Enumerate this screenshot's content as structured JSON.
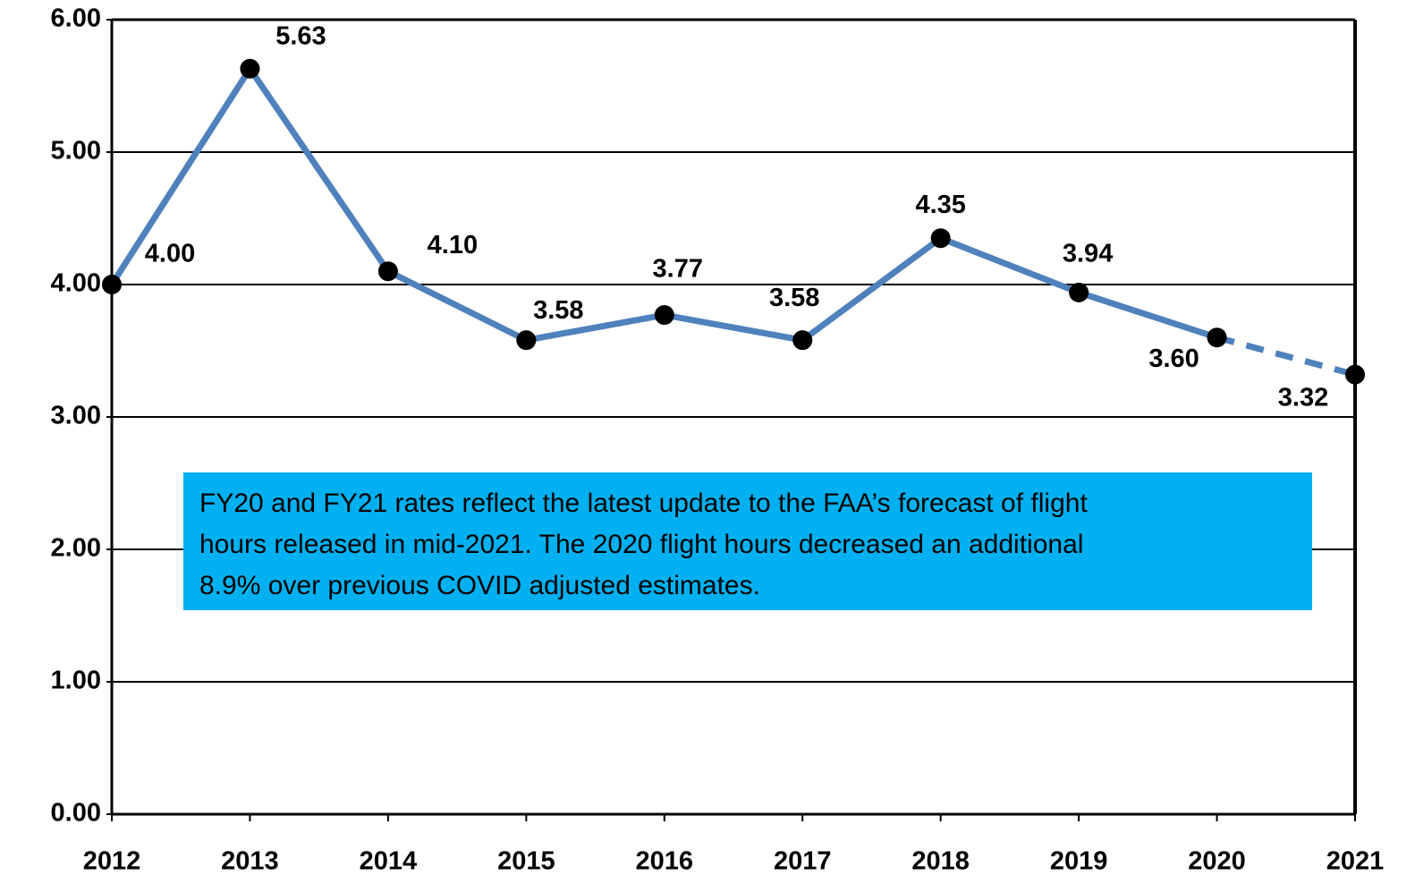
{
  "chart_data": {
    "type": "line",
    "x": [
      2012,
      2013,
      2014,
      2015,
      2016,
      2017,
      2018,
      2019,
      2020,
      2021
    ],
    "xlim": [
      2012,
      2021
    ],
    "xticks": [
      2012,
      2013,
      2014,
      2015,
      2016,
      2017,
      2018,
      2019,
      2020,
      2021
    ],
    "ylim": [
      0,
      6
    ],
    "yticks": [
      {
        "value": 0,
        "label": "0.00"
      },
      {
        "value": 1,
        "label": "1.00"
      },
      {
        "value": 2,
        "label": "2.00"
      },
      {
        "value": 3,
        "label": "3.00"
      },
      {
        "value": 4,
        "label": "4.00"
      },
      {
        "value": 5,
        "label": "5.00"
      },
      {
        "value": 6,
        "label": "6.00"
      }
    ],
    "grid": true,
    "series": [
      {
        "color": "#4f81bd",
        "values": [
          4.0,
          5.63,
          4.1,
          3.58,
          3.77,
          3.58,
          4.35,
          3.94,
          3.6,
          3.32
        ],
        "value_labels": [
          "4.00",
          "5.63",
          "4.10",
          "3.58",
          "3.77",
          "3.58",
          "4.35",
          "3.94",
          "3.60",
          "3.32"
        ],
        "segment_styles": [
          "solid",
          "solid",
          "solid",
          "solid",
          "solid",
          "solid",
          "solid",
          "solid",
          "dashed"
        ]
      }
    ],
    "annotation": [
      "FY20 and FY21 rates reflect the latest update to the FAA’s forecast of flight",
      "hours released in mid-2021. The 2020 flight hours decreased an additional",
      "8.9% over previous COVID adjusted estimates."
    ]
  }
}
